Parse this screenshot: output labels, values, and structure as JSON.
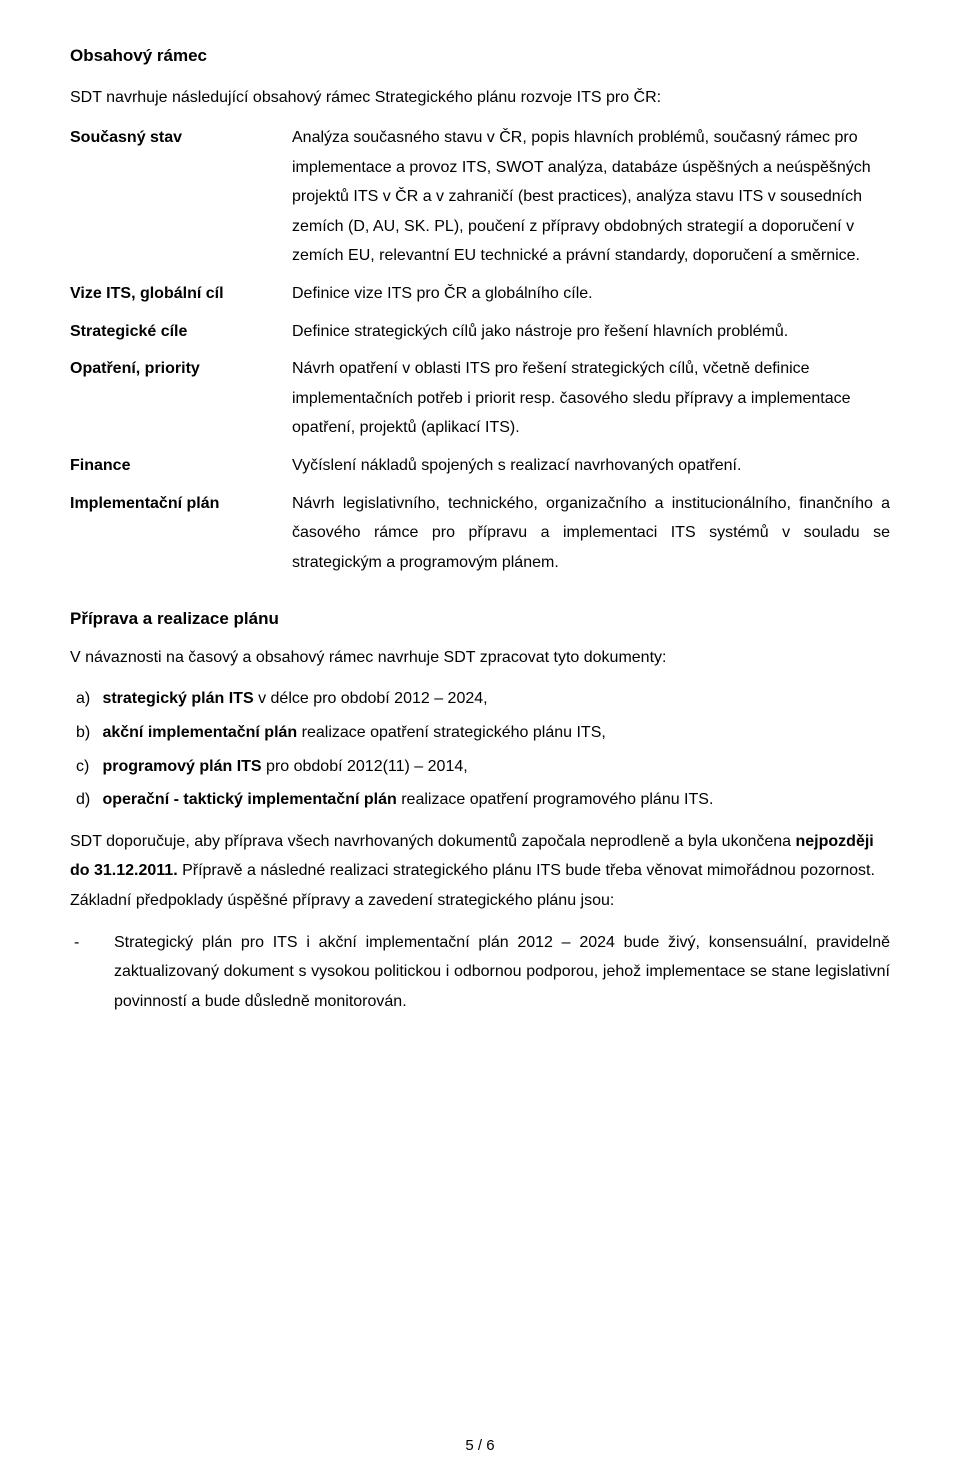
{
  "page": {
    "background": "#ffffff",
    "text_color": "#000000",
    "font_family": "Arial",
    "base_fontsize": 16,
    "line_height": 1.85
  },
  "section1": {
    "heading": "Obsahový rámec",
    "intro": "SDT navrhuje následující obsahový rámec Strategického plánu rozvoje ITS pro ČR:",
    "defs": [
      {
        "term": "Současný stav",
        "body": "Analýza současného stavu v ČR, popis hlavních problémů, současný rámec pro implementace a provoz ITS, SWOT analýza, databáze úspěšných a neúspěšných projektů ITS v ČR a v zahraničí (best practices), analýza stavu ITS v sousedních zemích (D, AU, SK. PL), poučení z přípravy obdobných strategií a doporučení v zemích EU, relevantní EU technické a právní standardy, doporučení a směrnice."
      },
      {
        "term": "Vize ITS, globální cíl",
        "body": "Definice vize ITS pro ČR a globálního cíle."
      },
      {
        "term": "Strategické cíle",
        "body": "Definice strategických cílů jako nástroje pro řešení hlavních problémů."
      },
      {
        "term": "Opatření, priority",
        "body": "Návrh opatření v oblasti ITS pro řešení strategických cílů, včetně definice implementačních potřeb i priorit resp. časového sledu přípravy a implementace opatření, projektů (aplikací ITS)."
      },
      {
        "term": "Finance",
        "body": "Vyčíslení nákladů spojených s realizací navrhovaných opatření."
      },
      {
        "term": "Implementační plán",
        "body": "Návrh legislativního, technického, organizačního a institucionálního, finančního a časového rámce pro přípravu a implementaci ITS systémů v souladu se strategickým a programovým plánem."
      }
    ]
  },
  "section2": {
    "heading": "Příprava a realizace plánu",
    "para1": "V návaznosti na časový a obsahový rámec navrhuje SDT zpracovat tyto dokumenty:",
    "ol": [
      {
        "marker": "a)",
        "bold": "strategický plán ITS",
        "rest": " v délce pro období 2012 – 2024,"
      },
      {
        "marker": "b)",
        "bold": "akční implementační plán",
        "rest": " realizace opatření strategického plánu ITS,"
      },
      {
        "marker": "c)",
        "bold": "programový plán ITS",
        "rest": " pro období 2012(11) – 2014,"
      },
      {
        "marker": "d)",
        "bold": "operační - taktický implementační plán",
        "rest": " realizace opatření programového plánu ITS."
      }
    ],
    "para2_pre": "SDT doporučuje, aby příprava všech navrhovaných dokumentů započala neprodleně a byla ukončena ",
    "para2_bold": "nejpozději do 31.12.2011.",
    "para2_post": " Přípravě a následné realizaci strategického plánu ITS bude třeba věnovat mimořádnou pozornost. Základní předpoklady úspěšné přípravy a zavedení strategického plánu jsou:",
    "ul": [
      {
        "dash": "-",
        "text": "Strategický plán pro ITS i akční implementační plán 2012 – 2024 bude živý, konsensuální, pravidelně zaktualizovaný dokument s vysokou politickou i odbornou podporou, jehož implementace se stane legislativní povinností a bude důsledně monitorován."
      }
    ]
  },
  "footer": "5 / 6"
}
